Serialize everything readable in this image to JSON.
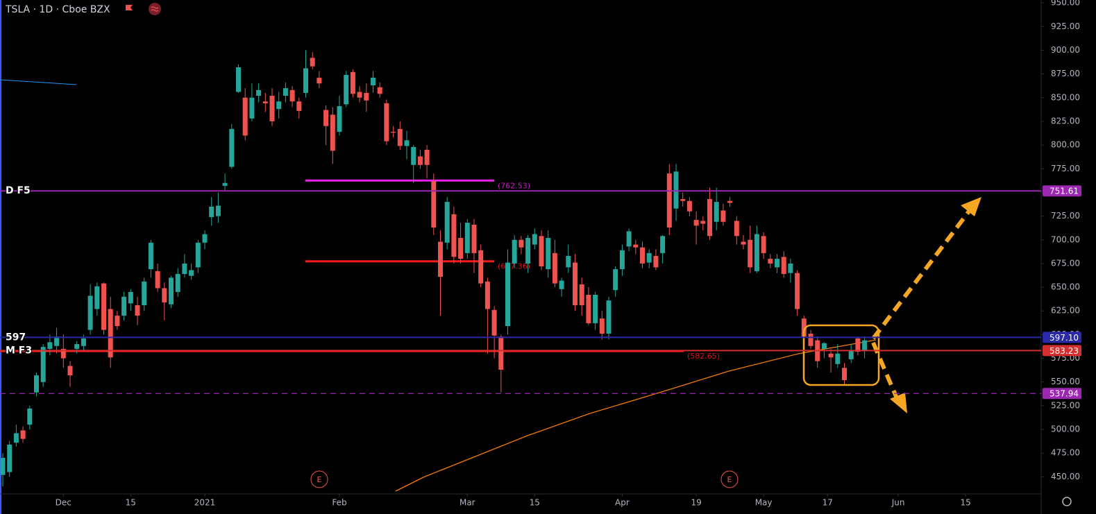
{
  "chart_data": {
    "type": "candlestick",
    "title": "TSLA · 1D · Cboe BZX",
    "up_color": "#26a69a",
    "down_color": "#ef5350",
    "ylim": [
      432,
      953
    ],
    "yticks": [
      {
        "value": 450,
        "label": "450.00"
      },
      {
        "value": 475,
        "label": "475.00"
      },
      {
        "value": 500,
        "label": "500.00"
      },
      {
        "value": 525,
        "label": "525.00"
      },
      {
        "value": 550,
        "label": "550.00"
      },
      {
        "value": 575,
        "label": "575.00"
      },
      {
        "value": 600,
        "label": "600.00"
      },
      {
        "value": 625,
        "label": "625.00"
      },
      {
        "value": 650,
        "label": "650.00"
      },
      {
        "value": 675,
        "label": "675.00"
      },
      {
        "value": 700,
        "label": "700.00"
      },
      {
        "value": 725,
        "label": "725.00"
      },
      {
        "value": 750,
        "label": "750.00"
      },
      {
        "value": 775,
        "label": "775.00"
      },
      {
        "value": 800,
        "label": "800.00"
      },
      {
        "value": 825,
        "label": "825.00"
      },
      {
        "value": 850,
        "label": "850.00"
      },
      {
        "value": 875,
        "label": "875.00"
      },
      {
        "value": 900,
        "label": "900.00"
      },
      {
        "value": 925,
        "label": "925.00"
      },
      {
        "value": 950,
        "label": "950.00"
      }
    ],
    "xticks": [
      {
        "value": 9,
        "label": "Dec"
      },
      {
        "value": 19,
        "label": "15"
      },
      {
        "value": 30,
        "label": "2021"
      },
      {
        "value": 50,
        "label": "Feb"
      },
      {
        "value": 69,
        "label": "Mar"
      },
      {
        "value": 79,
        "label": "15"
      },
      {
        "value": 92,
        "label": "Apr"
      },
      {
        "value": 103,
        "label": "19"
      },
      {
        "value": 113,
        "label": "May"
      },
      {
        "value": 122.5,
        "label": "17"
      },
      {
        "value": 133,
        "label": "Jun"
      },
      {
        "value": 143,
        "label": "15"
      }
    ],
    "candles": [
      [
        452,
        475,
        440,
        470
      ],
      [
        455,
        488,
        450,
        484
      ],
      [
        486,
        505,
        482,
        496
      ],
      [
        499,
        503,
        486,
        490
      ],
      [
        505,
        525,
        500,
        522
      ],
      [
        539,
        560,
        535,
        557
      ],
      [
        550,
        590,
        545,
        587
      ],
      [
        585,
        600,
        578,
        592
      ],
      [
        588,
        607,
        580,
        598
      ],
      [
        585,
        600,
        565,
        575
      ],
      [
        567,
        572,
        545,
        557
      ],
      [
        585,
        593,
        580,
        590
      ],
      [
        588,
        600,
        583,
        596
      ],
      [
        605,
        653,
        600,
        641
      ],
      [
        627,
        655,
        620,
        651
      ],
      [
        654,
        655,
        600,
        605
      ],
      [
        627,
        640,
        565,
        576
      ],
      [
        620,
        625,
        605,
        609
      ],
      [
        620,
        645,
        615,
        640
      ],
      [
        633,
        648,
        625,
        645
      ],
      [
        631,
        640,
        610,
        620
      ],
      [
        631,
        660,
        625,
        656
      ],
      [
        669,
        700,
        660,
        697
      ],
      [
        667,
        675,
        645,
        649
      ],
      [
        649,
        655,
        615,
        634
      ],
      [
        632,
        662,
        628,
        660
      ],
      [
        645,
        670,
        640,
        664
      ],
      [
        664,
        685,
        660,
        675
      ],
      [
        662,
        675,
        658,
        668
      ],
      [
        671,
        700,
        665,
        697
      ],
      [
        697,
        710,
        690,
        706
      ],
      [
        724,
        745,
        715,
        735
      ],
      [
        725,
        750,
        718,
        736
      ],
      [
        757,
        770,
        752,
        760
      ],
      [
        777,
        822,
        775,
        817
      ],
      [
        856,
        885,
        855,
        882
      ],
      [
        850,
        860,
        805,
        810
      ],
      [
        828,
        865,
        825,
        850
      ],
      [
        852,
        865,
        845,
        858
      ],
      [
        846,
        855,
        835,
        844
      ],
      [
        852,
        860,
        820,
        825
      ],
      [
        838,
        856,
        828,
        846
      ],
      [
        852,
        866,
        845,
        860
      ],
      [
        858,
        862,
        840,
        846
      ],
      [
        846,
        850,
        828,
        836
      ],
      [
        855,
        900,
        850,
        881
      ],
      [
        892,
        898,
        880,
        883
      ],
      [
        871,
        878,
        860,
        865
      ],
      [
        837,
        842,
        800,
        820
      ],
      [
        832,
        840,
        780,
        794
      ],
      [
        814,
        852,
        810,
        841
      ],
      [
        843,
        878,
        840,
        874
      ],
      [
        877,
        880,
        850,
        854
      ],
      [
        856,
        862,
        845,
        850
      ],
      [
        855,
        865,
        835,
        847
      ],
      [
        863,
        878,
        855,
        871
      ],
      [
        861,
        866,
        850,
        854
      ],
      [
        844,
        848,
        800,
        804
      ],
      [
        814,
        820,
        808,
        813
      ],
      [
        817,
        825,
        795,
        799
      ],
      [
        799,
        815,
        785,
        805
      ],
      [
        779,
        800,
        760,
        798
      ],
      [
        788,
        795,
        775,
        779
      ],
      [
        795,
        800,
        765,
        779
      ],
      [
        762,
        770,
        705,
        713
      ],
      [
        698,
        710,
        620,
        661
      ],
      [
        697,
        745,
        690,
        740
      ],
      [
        727,
        735,
        675,
        682
      ],
      [
        702,
        718,
        675,
        680
      ],
      [
        686,
        722,
        680,
        718
      ],
      [
        716,
        722,
        665,
        686
      ],
      [
        689,
        695,
        650,
        654
      ],
      [
        656,
        660,
        580,
        627
      ],
      [
        626,
        630,
        575,
        599
      ],
      [
        598,
        600,
        539,
        563
      ],
      [
        609,
        690,
        600,
        676
      ],
      [
        675,
        705,
        670,
        700
      ],
      [
        700,
        704,
        685,
        692
      ],
      [
        675,
        705,
        665,
        702
      ],
      [
        695,
        712,
        690,
        706
      ],
      [
        704,
        710,
        668,
        672
      ],
      [
        669,
        710,
        660,
        702
      ],
      [
        686,
        700,
        650,
        654
      ],
      [
        648,
        660,
        640,
        657
      ],
      [
        671,
        695,
        665,
        683
      ],
      [
        676,
        685,
        625,
        631
      ],
      [
        653,
        660,
        620,
        631
      ],
      [
        642,
        650,
        610,
        612
      ],
      [
        612,
        645,
        605,
        642
      ],
      [
        617,
        625,
        595,
        601
      ],
      [
        601,
        640,
        595,
        636
      ],
      [
        647,
        672,
        640,
        669
      ],
      [
        669,
        695,
        662,
        689
      ],
      [
        693,
        712,
        688,
        709
      ],
      [
        695,
        700,
        685,
        692
      ],
      [
        692,
        698,
        670,
        675
      ],
      [
        676,
        690,
        670,
        686
      ],
      [
        683,
        690,
        668,
        671
      ],
      [
        686,
        705,
        675,
        704
      ],
      [
        770,
        780,
        705,
        713
      ],
      [
        733,
        780,
        720,
        772
      ],
      [
        743,
        750,
        735,
        741
      ],
      [
        741,
        745,
        725,
        730
      ],
      [
        721,
        730,
        695,
        715
      ],
      [
        720,
        725,
        710,
        717
      ],
      [
        743,
        755,
        700,
        704
      ],
      [
        719,
        755,
        710,
        740
      ],
      [
        731,
        738,
        715,
        719
      ],
      [
        741,
        745,
        735,
        739
      ],
      [
        720,
        725,
        695,
        704
      ],
      [
        698,
        705,
        690,
        695
      ],
      [
        700,
        715,
        665,
        671
      ],
      [
        667,
        715,
        665,
        706
      ],
      [
        704,
        708,
        680,
        686
      ],
      [
        680,
        685,
        670,
        675
      ],
      [
        671,
        685,
        665,
        680
      ],
      [
        682,
        688,
        660,
        664
      ],
      [
        665,
        680,
        655,
        675
      ],
      [
        665,
        668,
        620,
        627
      ],
      [
        617,
        620,
        595,
        598
      ],
      [
        601,
        605,
        585,
        588
      ],
      [
        594,
        598,
        565,
        572
      ],
      [
        585,
        592,
        575,
        591
      ],
      [
        580,
        585,
        560,
        576
      ],
      [
        569,
        590,
        565,
        580
      ],
      [
        565,
        570,
        546,
        552
      ],
      [
        574,
        590,
        570,
        583
      ],
      [
        596,
        598,
        578,
        582
      ],
      [
        583,
        598,
        575,
        594
      ]
    ],
    "levels": [
      {
        "name": "D F5",
        "value": 751.61,
        "value_label": "751.61",
        "color": "#9c27b0"
      },
      {
        "name": "597",
        "value": 597.1,
        "value_label": "597.10",
        "color": "#2a2aa8"
      },
      {
        "name": "M F3",
        "value": 583.23,
        "value_label": "583.23",
        "color": "#d32f2f"
      },
      {
        "value": 537.94,
        "value_label": "537.94",
        "color": "#9c27b0",
        "dashed": true
      }
    ],
    "segments": [
      {
        "value": 762.53,
        "label": "(762.53)",
        "color": "#e91ee9"
      },
      {
        "value": 677.36,
        "label": "(677.36)",
        "color": "#ff1a1a"
      },
      {
        "value": 582.65,
        "label": "(582.65)",
        "color": "#ff1a1a"
      }
    ],
    "events": [
      "E",
      "E"
    ]
  }
}
